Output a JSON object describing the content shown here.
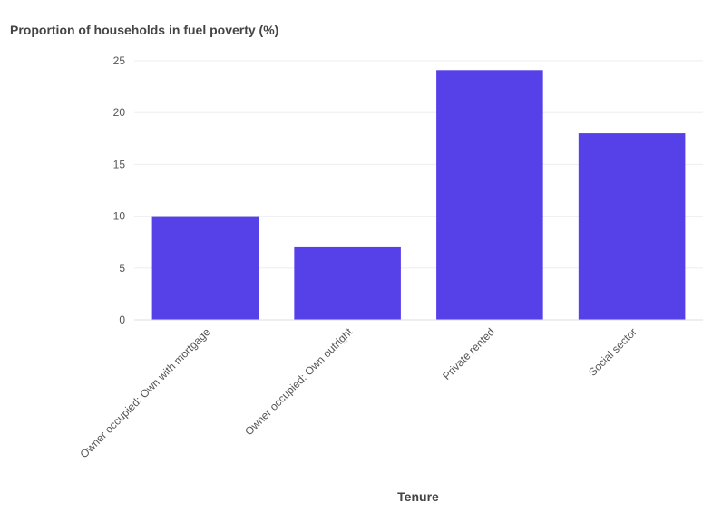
{
  "chart_data": {
    "type": "bar",
    "title": "Proportion of households in fuel poverty (%)",
    "xlabel": "Tenure",
    "ylabel": "",
    "categories": [
      "Owner occupied: Own with mortgage",
      "Owner occupied: Own outright",
      "Private rented",
      "Social sector"
    ],
    "values": [
      10,
      7,
      24.1,
      18
    ],
    "ylim": [
      0,
      25
    ],
    "yticks": [
      0,
      5,
      10,
      15,
      20,
      25
    ],
    "grid": true,
    "bar_color": "#5640e8"
  }
}
